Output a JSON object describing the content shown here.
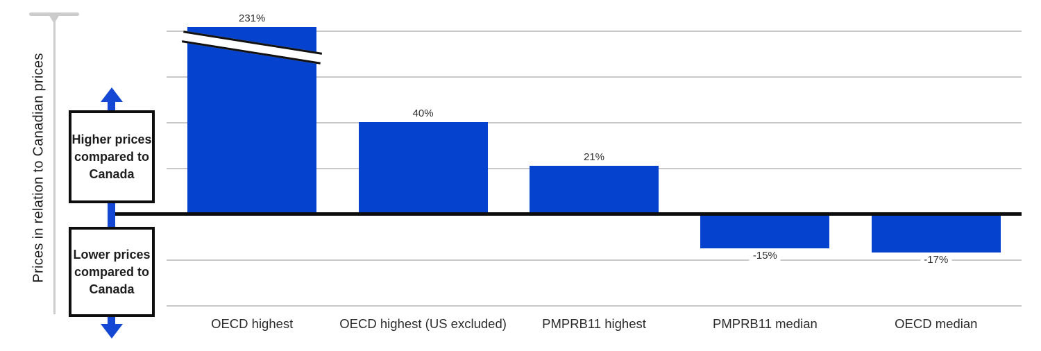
{
  "colors": {
    "bar": "#0542CD",
    "arrow": "#1447D3",
    "gridline": "#C9C9C9",
    "zero_line": "#0D0D0D",
    "axis": "#CCCCCC",
    "box_border": "#0D0D0D",
    "text": "#212121"
  },
  "y_axis": {
    "label": "Prices in relation to Canadian prices"
  },
  "annotations": {
    "higher_box": "Higher prices compared to Canada",
    "lower_box": "Lower prices compared to Canada"
  },
  "chart_data": {
    "type": "bar",
    "title": "",
    "ylabel": "Prices in relation to Canadian prices",
    "xlabel": "",
    "categories": [
      "OECD highest",
      "OECD highest (US excluded)",
      "PMPRB11 highest",
      "PMPRB11 median",
      "OECD median"
    ],
    "values": [
      231,
      40,
      21,
      -15,
      -17
    ],
    "value_labels": [
      "231%",
      "40%",
      "21%",
      "-15%",
      "-17%"
    ],
    "ylim": [
      -40,
      80
    ],
    "gridlines_pct": [
      80,
      60,
      40,
      20,
      -20,
      -40
    ],
    "gridline_step_pct": 20,
    "grid": true,
    "legend": false,
    "axis_break": {
      "bar_index": 0,
      "note": "first bar exceeds axis range, shown with diagonal break"
    },
    "baseline_pct": 0
  }
}
